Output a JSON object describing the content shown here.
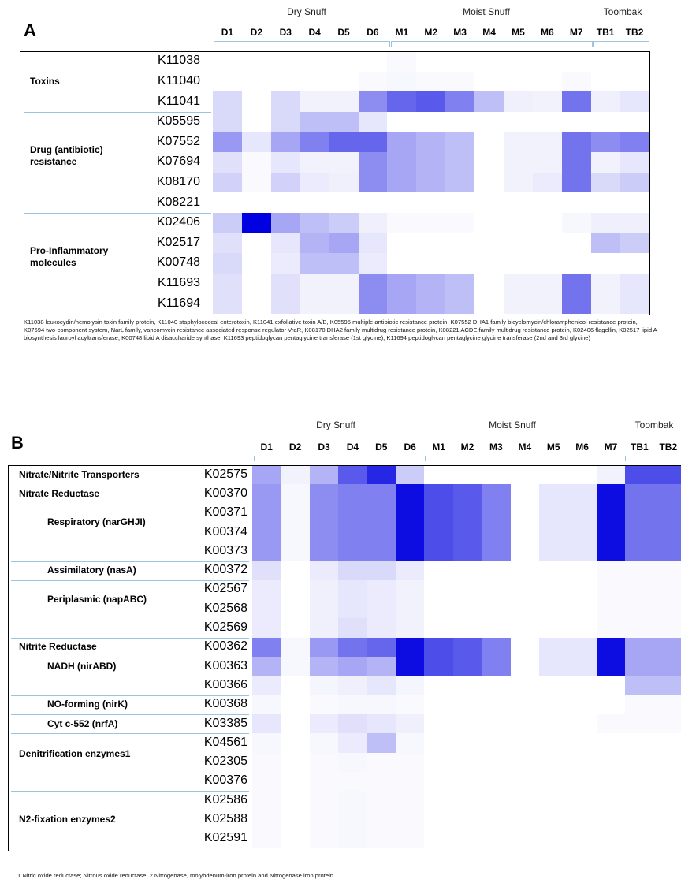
{
  "chart_data": [
    {
      "type": "heatmap",
      "panel": "A",
      "group_labels": [
        "Dry Snuff",
        "Moist Snuff",
        "Toombak"
      ],
      "columns": [
        "D1",
        "D2",
        "D3",
        "D4",
        "D5",
        "D6",
        "M1",
        "M2",
        "M3",
        "M4",
        "M5",
        "M6",
        "M7",
        "TB1",
        "TB2"
      ],
      "rows": [
        "K11038",
        "K11040",
        "K11041",
        "K05595",
        "K07552",
        "K07694",
        "K08170",
        "K08221",
        "K02406",
        "K02517",
        "K00748",
        "K11693",
        "K11694"
      ],
      "categories": [
        {
          "label": "Toxins",
          "rows": [
            0,
            2
          ]
        },
        {
          "label": "Drug (antibiotic) resistance",
          "rows": [
            3,
            7
          ]
        },
        {
          "label": "Pro-Inflammatory molecules",
          "rows": [
            8,
            12
          ]
        }
      ],
      "values": [
        [
          0,
          0,
          0,
          0,
          0,
          0,
          0.02,
          0,
          0,
          0,
          0,
          0,
          0,
          0,
          0
        ],
        [
          0,
          0,
          0,
          0,
          0,
          0.02,
          0.03,
          0.02,
          0.02,
          0,
          0,
          0,
          0.02,
          0,
          0
        ],
        [
          0.15,
          0,
          0.15,
          0.05,
          0.05,
          0.45,
          0.6,
          0.65,
          0.5,
          0.25,
          0.06,
          0.05,
          0.55,
          0.06,
          0.1
        ],
        [
          0.15,
          0,
          0.15,
          0.25,
          0.25,
          0.1,
          0,
          0,
          0,
          0,
          0,
          0,
          0,
          0,
          0
        ],
        [
          0.4,
          0.1,
          0.35,
          0.5,
          0.6,
          0.6,
          0.35,
          0.3,
          0.25,
          0,
          0.05,
          0.05,
          0.55,
          0.45,
          0.5
        ],
        [
          0.12,
          0.02,
          0.1,
          0.05,
          0.05,
          0.45,
          0.35,
          0.3,
          0.25,
          0,
          0.05,
          0.05,
          0.55,
          0.05,
          0.1
        ],
        [
          0.18,
          0.02,
          0.18,
          0.08,
          0.06,
          0.45,
          0.35,
          0.3,
          0.25,
          0,
          0.05,
          0.08,
          0.55,
          0.15,
          0.2
        ],
        [
          0,
          0,
          0,
          0,
          0,
          0,
          0,
          0,
          0,
          0,
          0,
          0,
          0,
          0,
          0
        ],
        [
          0.2,
          1.0,
          0.35,
          0.25,
          0.2,
          0.06,
          0.02,
          0.02,
          0.02,
          0,
          0,
          0,
          0.03,
          0.06,
          0.06
        ],
        [
          0.12,
          0,
          0.1,
          0.3,
          0.35,
          0.1,
          0,
          0,
          0,
          0,
          0,
          0,
          0,
          0.25,
          0.2
        ],
        [
          0.15,
          0,
          0.08,
          0.25,
          0.25,
          0.08,
          0,
          0,
          0,
          0,
          0,
          0,
          0,
          0,
          0
        ],
        [
          0.12,
          0,
          0.12,
          0.05,
          0.05,
          0.45,
          0.35,
          0.3,
          0.25,
          0,
          0.05,
          0.05,
          0.55,
          0.05,
          0.1
        ],
        [
          0.12,
          0,
          0.12,
          0.05,
          0.05,
          0.45,
          0.35,
          0.3,
          0.25,
          0,
          0.05,
          0.05,
          0.55,
          0.05,
          0.1
        ]
      ],
      "color_low": "#ffffff",
      "color_high": "#0000e0",
      "footnote": "K11038 leukocydin/hemolysin toxin family protein, K11040 staphylococcal enterotoxin, K11041 exfoliative toxin A/B, K05595 multiple antibiotic resistance protein, K07552 DHA1 family bicyclomycin/chloramphenicol resistance protein, K07694 two-component system, NarL family, vancomycin resistance associated response regulator VraR, K08170 DHA2 family multidrug resistance protein, K08221 ACDE family multidrug resistance protein, K02406 flagellin, K02517 lipid A biosynthesis lauroyl acyltransferase, K00748 lipid A disaccharide synthase, K11693 peptidoglycan pentaglycine transferase (1st glycine), K11694 peptidoglycan pentaglycine glycine transferase (2nd and 3rd glycine)"
    },
    {
      "type": "heatmap",
      "panel": "B",
      "group_labels": [
        "Dry Snuff",
        "Moist Snuff",
        "Toombak"
      ],
      "columns": [
        "D1",
        "D2",
        "D3",
        "D4",
        "D5",
        "D6",
        "M1",
        "M2",
        "M3",
        "M4",
        "M5",
        "M6",
        "M7",
        "TB1",
        "TB2"
      ],
      "rows": [
        "K02575",
        "K00370",
        "K00371",
        "K00374",
        "K00373",
        "K00372",
        "K02567",
        "K02568",
        "K02569",
        "K00362",
        "K00363",
        "K00366",
        "K00368",
        "K03385",
        "K04561",
        "K02305",
        "K00376",
        "K02586",
        "K02588",
        "K02591"
      ],
      "categories": [
        {
          "label": "Nitrate/Nitrite Transporters",
          "rows": [
            0,
            0
          ]
        },
        {
          "label": "Nitrate Reductase",
          "rows": [
            1,
            1
          ]
        },
        {
          "label": "Respiratory (narGHJI)",
          "rows": [
            1,
            4
          ]
        },
        {
          "label": "Assimilatory (nasA)",
          "rows": [
            5,
            5
          ]
        },
        {
          "label": "Periplasmic (napABC)",
          "rows": [
            6,
            8
          ]
        },
        {
          "label": "Nitrite Reductase",
          "rows": [
            9,
            9
          ]
        },
        {
          "label": "NADH (nirABD)",
          "rows": [
            9,
            11
          ]
        },
        {
          "label": "NO-forming (nirK)",
          "rows": [
            12,
            12
          ]
        },
        {
          "label": "Cyt c-552 (nrfA)",
          "rows": [
            13,
            13
          ]
        },
        {
          "label": "Denitrification enzymes1",
          "rows": [
            14,
            16
          ]
        },
        {
          "label": "N2-fixation enzymes2",
          "rows": [
            17,
            19
          ]
        }
      ],
      "values": [
        [
          0.35,
          0.05,
          0.3,
          0.65,
          0.85,
          0.2,
          0,
          0,
          0,
          0,
          0,
          0,
          0.05,
          0.7,
          0.7
        ],
        [
          0.4,
          0.03,
          0.45,
          0.5,
          0.5,
          0.95,
          0.7,
          0.65,
          0.5,
          0,
          0.1,
          0.1,
          0.95,
          0.55,
          0.55
        ],
        [
          0.4,
          0.03,
          0.45,
          0.5,
          0.5,
          0.95,
          0.7,
          0.65,
          0.5,
          0,
          0.1,
          0.1,
          0.95,
          0.55,
          0.55
        ],
        [
          0.4,
          0.03,
          0.45,
          0.5,
          0.5,
          0.95,
          0.7,
          0.65,
          0.5,
          0,
          0.1,
          0.1,
          0.95,
          0.55,
          0.55
        ],
        [
          0.4,
          0.03,
          0.45,
          0.5,
          0.5,
          0.95,
          0.7,
          0.65,
          0.5,
          0,
          0.1,
          0.1,
          0.95,
          0.55,
          0.55
        ],
        [
          0.12,
          0,
          0.08,
          0.15,
          0.15,
          0.08,
          0,
          0,
          0,
          0,
          0,
          0,
          0.02,
          0.02,
          0.02
        ],
        [
          0.08,
          0,
          0.06,
          0.1,
          0.08,
          0.05,
          0,
          0,
          0,
          0,
          0,
          0,
          0.02,
          0.02,
          0.02
        ],
        [
          0.08,
          0,
          0.06,
          0.1,
          0.08,
          0.05,
          0,
          0,
          0,
          0,
          0,
          0,
          0.02,
          0.02,
          0.02
        ],
        [
          0.08,
          0,
          0.06,
          0.12,
          0.08,
          0.05,
          0,
          0,
          0,
          0,
          0,
          0,
          0.02,
          0.02,
          0.02
        ],
        [
          0.5,
          0.03,
          0.4,
          0.55,
          0.6,
          0.95,
          0.7,
          0.65,
          0.5,
          0,
          0.1,
          0.1,
          0.95,
          0.35,
          0.35
        ],
        [
          0.3,
          0.03,
          0.3,
          0.35,
          0.3,
          0.95,
          0.7,
          0.65,
          0.5,
          0,
          0.1,
          0.1,
          0.95,
          0.35,
          0.35
        ],
        [
          0.08,
          0,
          0.04,
          0.06,
          0.1,
          0.04,
          0,
          0,
          0,
          0,
          0,
          0,
          0,
          0.25,
          0.25
        ],
        [
          0.03,
          0,
          0.02,
          0.03,
          0.03,
          0.02,
          0,
          0,
          0,
          0,
          0,
          0,
          0,
          0.02,
          0.02
        ],
        [
          0.1,
          0,
          0.08,
          0.12,
          0.1,
          0.06,
          0,
          0,
          0,
          0,
          0,
          0,
          0.02,
          0.02,
          0.02
        ],
        [
          0.03,
          0,
          0.03,
          0.08,
          0.25,
          0.03,
          0,
          0,
          0,
          0,
          0,
          0,
          0,
          0,
          0
        ],
        [
          0.02,
          0,
          0.02,
          0.03,
          0.02,
          0.02,
          0,
          0,
          0,
          0,
          0,
          0,
          0,
          0,
          0
        ],
        [
          0.02,
          0,
          0.02,
          0.02,
          0.02,
          0.02,
          0,
          0,
          0,
          0,
          0,
          0,
          0,
          0,
          0
        ],
        [
          0.02,
          0,
          0.02,
          0.03,
          0.02,
          0.02,
          0,
          0,
          0,
          0,
          0,
          0,
          0,
          0,
          0
        ],
        [
          0.02,
          0,
          0.02,
          0.03,
          0.02,
          0.02,
          0,
          0,
          0,
          0,
          0,
          0,
          0,
          0,
          0
        ],
        [
          0.02,
          0,
          0.02,
          0.03,
          0.02,
          0.02,
          0,
          0,
          0,
          0,
          0,
          0,
          0,
          0,
          0
        ]
      ],
      "color_low": "#ffffff",
      "color_high": "#0000e0",
      "footnote": "1 Nitric oxide reductase; Nitrous oxide reductase; 2 Nitrogenase, molybdenum-iron protein and Nitrogenase iron protein"
    }
  ]
}
